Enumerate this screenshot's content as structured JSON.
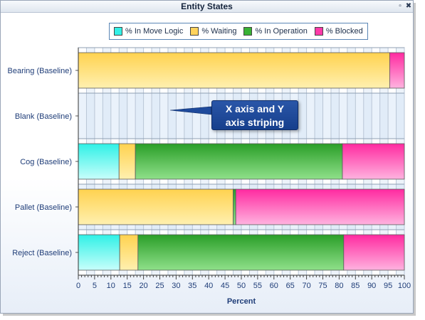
{
  "window": {
    "title": "Entity States",
    "buttons": [
      {
        "name": "restore",
        "icon": "restore-icon",
        "glyph": "▫"
      },
      {
        "name": "close",
        "icon": "close-icon",
        "glyph": "✖"
      }
    ]
  },
  "callout": {
    "line1": "X axis and Y",
    "line2": "axis striping"
  },
  "chart_data": {
    "type": "bar",
    "orientation": "horizontal",
    "stacked": true,
    "categories": [
      "Bearing (Baseline)",
      "Blank (Baseline)",
      "Cog (Baseline)",
      "Pallet (Baseline)",
      "Reject (Baseline)"
    ],
    "series": [
      {
        "name": "% In Move Logic",
        "color": "#33f0e6",
        "values": [
          0,
          0,
          12.5,
          0,
          12.7
        ]
      },
      {
        "name": "% Waiting",
        "color": "#ffd35c",
        "values": [
          95.5,
          0,
          5,
          47.5,
          5.6
        ]
      },
      {
        "name": "% In Operation",
        "color": "#39b234",
        "values": [
          0,
          0,
          63.5,
          0.8,
          63.1
        ]
      },
      {
        "name": "% Blocked",
        "color": "#ff3aa8",
        "values": [
          4.5,
          0,
          19,
          51.7,
          18.6
        ]
      }
    ],
    "xlabel": "Percent",
    "xlim": [
      0,
      100
    ],
    "xticks": [
      0,
      5,
      10,
      15,
      20,
      25,
      30,
      35,
      40,
      45,
      50,
      55,
      60,
      65,
      70,
      75,
      80,
      85,
      90,
      95,
      100
    ],
    "legend_position": "top-center",
    "grid": true,
    "axis_striping": true
  }
}
